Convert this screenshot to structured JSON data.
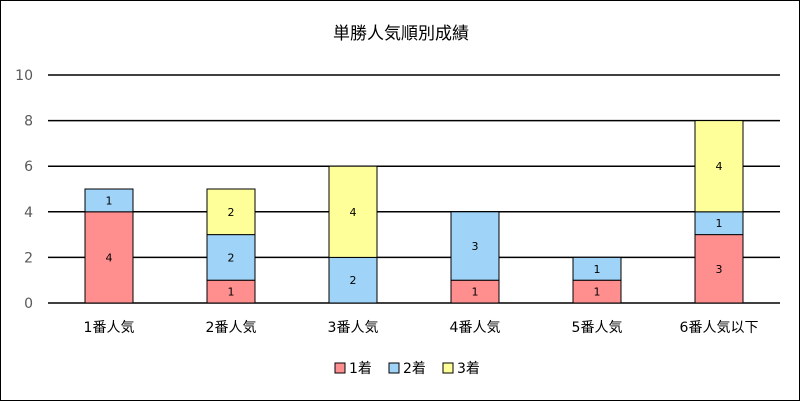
{
  "chart_data": {
    "type": "bar",
    "stacked": true,
    "title": "単勝人気順別成績",
    "categories": [
      "1番人気",
      "2番人気",
      "3番人気",
      "4番人気",
      "5番人気",
      "6番人気以下"
    ],
    "series": [
      {
        "name": "1着",
        "color": "#ff8f8f",
        "values": [
          4,
          1,
          0,
          1,
          1,
          3
        ]
      },
      {
        "name": "2着",
        "color": "#9fd3f7",
        "values": [
          1,
          2,
          2,
          3,
          1,
          1
        ]
      },
      {
        "name": "3着",
        "color": "#ffff99",
        "values": [
          0,
          2,
          4,
          0,
          0,
          4
        ]
      }
    ],
    "ylim": [
      0,
      10
    ],
    "yticks": [
      0,
      2,
      4,
      6,
      8,
      10
    ],
    "grid": true,
    "legend_position": "bottom"
  }
}
